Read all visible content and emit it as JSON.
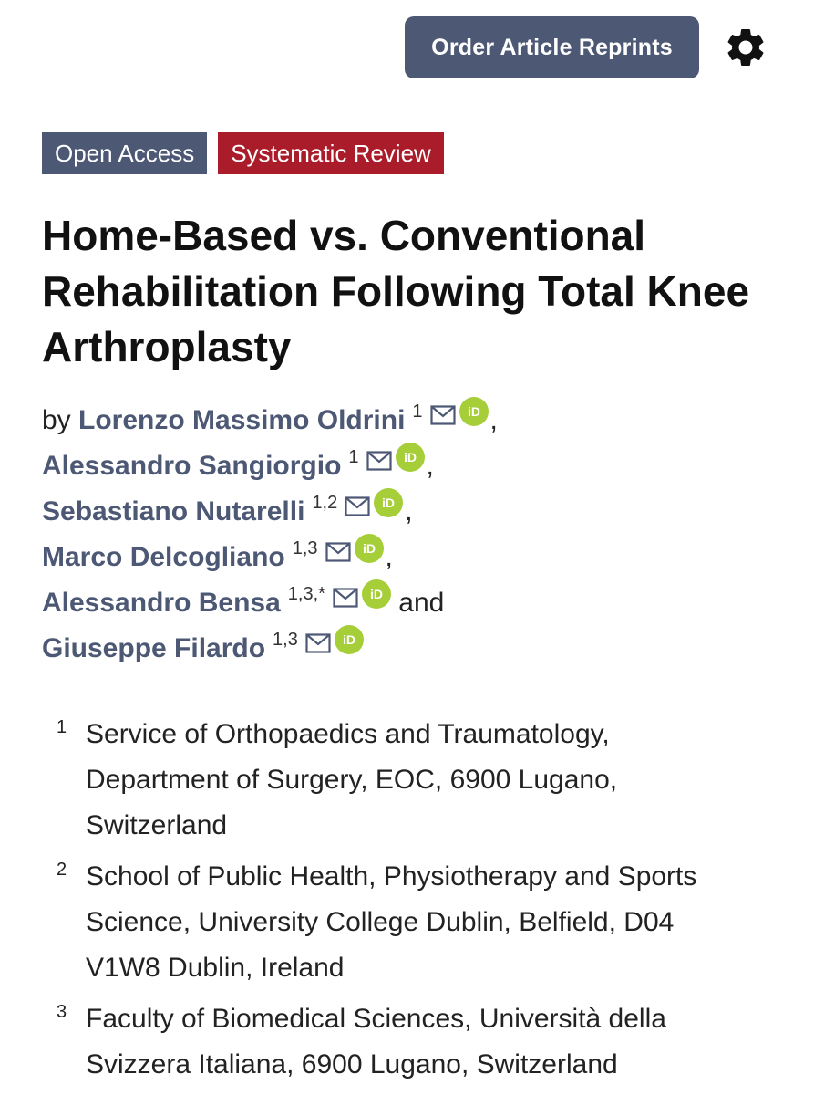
{
  "header": {
    "reprints_label": "Order Article Reprints",
    "settings_icon": "gear-icon"
  },
  "badges": {
    "access": "Open Access",
    "type": "Systematic Review"
  },
  "colors": {
    "brand": "#4c5874",
    "review_badge": "#ab1c2a",
    "orcid": "#a6ce39"
  },
  "article": {
    "title_line1": "Home-Based vs. Conventional",
    "title_line2": "Rehabilitation Following Total Knee",
    "title_line3": "Arthroplasty"
  },
  "authors": {
    "by_label": "by",
    "and_label": "and",
    "list": [
      {
        "name": "Lorenzo Massimo Oldrini",
        "aff": "1",
        "sep": ","
      },
      {
        "name": "Alessandro Sangiorgio",
        "aff": "1",
        "sep": ","
      },
      {
        "name": "Sebastiano Nutarelli",
        "aff": "1,2",
        "sep": ","
      },
      {
        "name": "Marco Delcogliano",
        "aff": "1,3",
        "sep": ","
      },
      {
        "name": "Alessandro Bensa",
        "aff": "1,3,*",
        "sep": ""
      },
      {
        "name": "Giuseppe Filardo",
        "aff": "1,3",
        "sep": ""
      }
    ]
  },
  "affiliations": [
    {
      "num": "1",
      "lines": [
        "Service of Orthopaedics and Traumatology,",
        "Department of Surgery, EOC, 6900 Lugano,",
        "Switzerland"
      ]
    },
    {
      "num": "2",
      "lines": [
        "School of Public Health, Physiotherapy and Sports",
        "Science, University College Dublin, Belfield, D04",
        "V1W8 Dublin, Ireland"
      ]
    },
    {
      "num": "3",
      "lines": [
        "Faculty of Biomedical Sciences, Università della",
        "Svizzera Italiana, 6900 Lugano, Switzerland"
      ]
    }
  ]
}
